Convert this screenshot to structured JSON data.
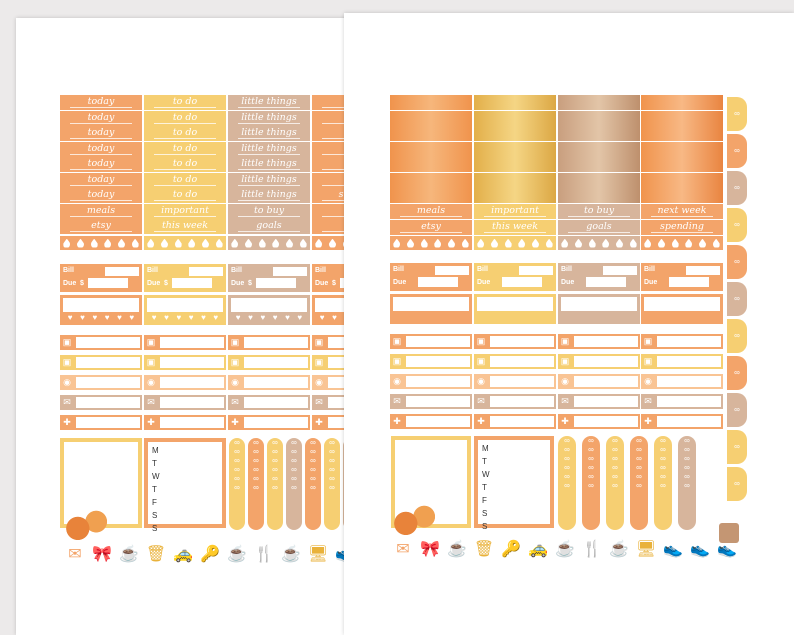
{
  "colors": {
    "orange": "#f3a46a",
    "yellow": "#f6cf72",
    "tan": "#d7b59c",
    "peach": "#f9c494",
    "cream": "#fbe7c7",
    "darkorange": "#ef8a3d",
    "gold": "#e9b23b",
    "copper": "#c49673"
  },
  "sheet1": {
    "columns": [
      {
        "color": "#f3a46a",
        "labels": [
          "today",
          "today",
          "today",
          "today",
          "today",
          "today",
          "today",
          "meals",
          "etsy"
        ]
      },
      {
        "color": "#f6cf72",
        "labels": [
          "to do",
          "to do",
          "to do",
          "to do",
          "to do",
          "to do",
          "to do",
          "important",
          "this week"
        ]
      },
      {
        "color": "#d7b59c",
        "labels": [
          "little things",
          "little things",
          "little things",
          "little things",
          "little things",
          "little things",
          "little things",
          "to buy",
          "goals"
        ]
      },
      {
        "color": "#f3a46a",
        "labels": [
          "",
          "",
          "",
          "",
          "hap",
          "",
          "spend",
          "nex",
          ""
        ]
      }
    ]
  },
  "sheet2": {
    "headers": [
      {
        "color": "#f3a46a",
        "labels": [
          "meals",
          "etsy"
        ]
      },
      {
        "color": "#f6cf72",
        "labels": [
          "important",
          "this week"
        ]
      },
      {
        "color": "#d7b59c",
        "labels": [
          "to buy",
          "goals"
        ]
      },
      {
        "color": "#f3a46a",
        "labels": [
          "next week",
          "spending"
        ]
      }
    ]
  },
  "bill": {
    "bill": "Bill",
    "due": "Due",
    "dollar": "$"
  },
  "days": [
    "M",
    "T",
    "W",
    "T",
    "F",
    "S",
    "S"
  ],
  "icons": {
    "tv": "tv-icon",
    "bow": "bow-icon",
    "plate": "plate-icon",
    "mail": "mail-icon",
    "gift": "gift-icon",
    "heart": "heart-icon",
    "scale": "scale-icon",
    "cart": "cart-icon"
  }
}
